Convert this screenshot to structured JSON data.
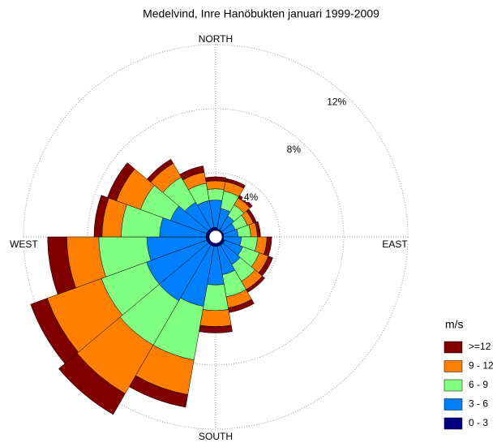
{
  "chart_data": {
    "type": "wind_rose",
    "title": "Medelvind, Inre Hanöbukten januari 1999-2009",
    "compass": [
      "NORTH",
      "EAST",
      "SOUTH",
      "WEST"
    ],
    "x": [
      0,
      20,
      40,
      60,
      80,
      100,
      120,
      140,
      160,
      180,
      200,
      220,
      240,
      260,
      280,
      300,
      320,
      340
    ],
    "sector_width": 20,
    "rlim": [
      0,
      12
    ],
    "rticks": [
      {
        "value": 4,
        "label": "4%"
      },
      {
        "value": 8,
        "label": "8%"
      },
      {
        "value": 12,
        "label": "12%"
      }
    ],
    "legend_title": "m/s",
    "series": [
      {
        "name": "0 - 3",
        "color": "#000080",
        "values": [
          0.6,
          0.5,
          0.5,
          0.5,
          0.5,
          0.5,
          0.6,
          0.6,
          0.6,
          0.6,
          0.6,
          0.6,
          0.6,
          0.6,
          0.6,
          0.6,
          0.6,
          0.6
        ]
      },
      {
        "name": "3 - 6",
        "color": "#0080ff",
        "values": [
          1.7,
          1.3,
          1.0,
          0.8,
          0.9,
          1.1,
          1.2,
          1.4,
          1.8,
          2.4,
          3.8,
          4.0,
          4.0,
          3.7,
          2.9,
          2.4,
          1.9,
          1.7
        ]
      },
      {
        "name": "6 - 9",
        "color": "#80ff80",
        "values": [
          0.7,
          1.1,
          0.8,
          0.8,
          0.8,
          1.0,
          1.1,
          1.2,
          1.4,
          1.6,
          3.4,
          3.2,
          3.0,
          3.0,
          2.4,
          2.0,
          1.8,
          1.1
        ]
      },
      {
        "name": "9 - 12",
        "color": "#ff8000",
        "values": [
          0.5,
          0.6,
          0.5,
          0.4,
          0.4,
          0.6,
          0.6,
          0.6,
          0.7,
          1.0,
          2.2,
          3.5,
          3.6,
          2.0,
          1.2,
          1.6,
          1.0,
          0.7
        ]
      },
      {
        "name": ">=12",
        "color": "#800000",
        "values": [
          0.25,
          0.2,
          0.2,
          0.2,
          0.2,
          0.3,
          0.3,
          0.2,
          0.3,
          0.4,
          0.8,
          1.5,
          1.1,
          1.2,
          0.5,
          0.6,
          0.3,
          0.4
        ]
      }
    ]
  }
}
